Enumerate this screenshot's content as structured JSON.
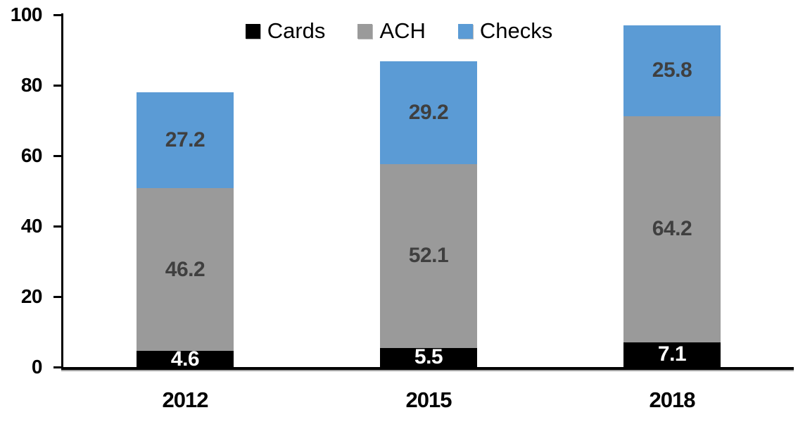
{
  "chart_data": {
    "type": "bar",
    "stacked": true,
    "title": "",
    "categories": [
      "2012",
      "2015",
      "2018"
    ],
    "series": [
      {
        "name": "Cards",
        "color": "#000000",
        "label_color": "#ffffff",
        "values": [
          4.6,
          5.5,
          7.1
        ]
      },
      {
        "name": "ACH",
        "color": "#9A9A9A",
        "label_color": "#3F3F3F",
        "values": [
          46.2,
          52.1,
          64.2
        ]
      },
      {
        "name": "Checks",
        "color": "#5B9BD5",
        "label_color": "#3F3F3F",
        "values": [
          27.2,
          29.2,
          25.8
        ]
      }
    ],
    "totals": [
      78.0,
      86.8,
      97.1
    ],
    "xlabel": "",
    "ylabel": "",
    "ylim": [
      0,
      100
    ],
    "yticks": [
      0,
      20,
      40,
      60,
      80,
      100
    ],
    "grid": false,
    "legend_position": "top-center",
    "legend_order": [
      "Cards",
      "ACH",
      "Checks"
    ],
    "axis_color": "#000000",
    "background_color": "#ffffff"
  }
}
